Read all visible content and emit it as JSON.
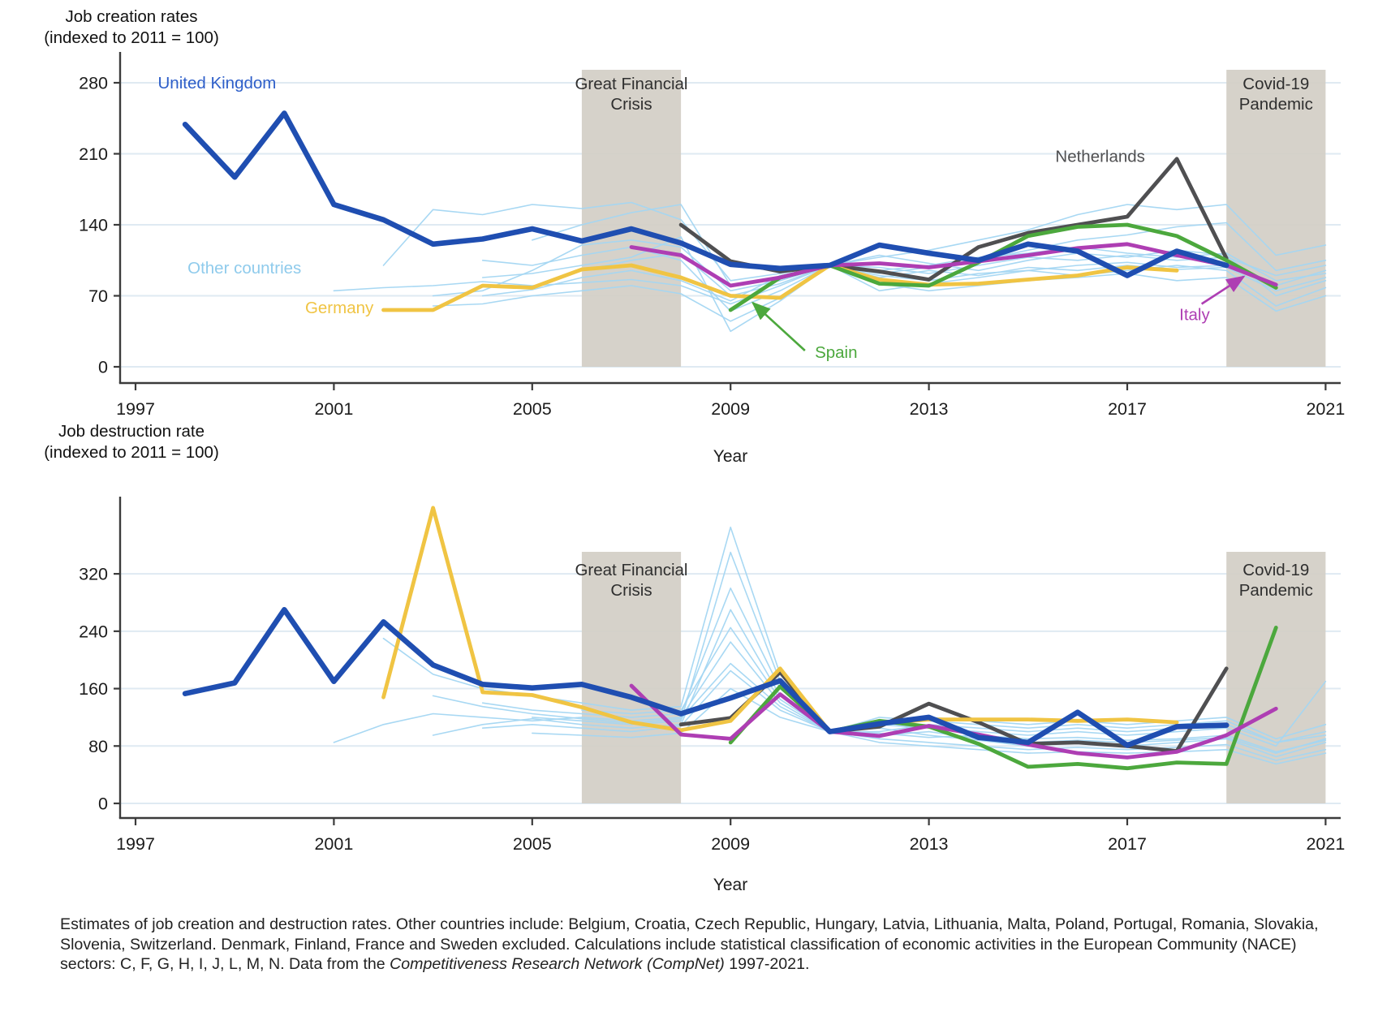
{
  "figure_note": {
    "text_before": "Estimates of job creation and destruction rates. Other countries include: Belgium, Croatia, Czech Republic, Hungary, Latvia, Lithuania, Malta, Poland, Portugal, Romania, Slovakia, Slovenia, Switzerland. Denmark, Finland, France and Sweden excluded. Calculations include statistical classification of economic activities in the European Community (NACE) sectors: C, F, G, H, I, J, L, M, N. Data from the ",
    "italic": "Competitiveness Research Network (CompNet)",
    "text_after": " 1997-2021."
  },
  "colors": {
    "uk": "#1F4EB1",
    "uk_label": "#2D5EC9",
    "germany": "#F0C443",
    "netherlands": "#4F4F51",
    "italy": "#AE3EB3",
    "spain": "#4CA83D",
    "other": "#A3D6F2",
    "other_label": "#8FCBEC",
    "band": "#D2CEC6",
    "grid": "#DFEAF2",
    "axis": "#3B3B3B",
    "text": "#1C1C1C",
    "band_text": "#2F2F2F"
  },
  "chart_data": [
    {
      "type": "line",
      "title_line1": "Job creation rates",
      "title_line2": "(indexed to 2011 = 100)",
      "xlabel": "Year",
      "x_ticks": [
        1997,
        2001,
        2005,
        2009,
        2013,
        2017,
        2021
      ],
      "y_ticks": [
        0,
        70,
        140,
        210,
        280
      ],
      "xlim": [
        1997,
        2021.3
      ],
      "ylim": [
        0,
        293
      ],
      "grid": true,
      "bands": [
        {
          "from": 2006,
          "to": 2008,
          "label": [
            "Great Financial",
            "Crisis"
          ]
        },
        {
          "from": 2019,
          "to": 2021,
          "label": [
            "Covid-19",
            "Pandemic"
          ]
        }
      ],
      "series": [
        {
          "key": "other",
          "name": "Other countries",
          "cls": "other",
          "start": 2001,
          "values": [
            75,
            78,
            80,
            84,
            80,
            83,
            86,
            80,
            62,
            80,
            100,
            90,
            85,
            92,
            95,
            100,
            103,
            98,
            100,
            80,
            95
          ]
        },
        {
          "key": "other",
          "name": "Other countries",
          "cls": "other",
          "start": 2002,
          "values": [
            100,
            155,
            150,
            160,
            156,
            162,
            145,
            85,
            92,
            100,
            95,
            100,
            108,
            112,
            118,
            112,
            108,
            112,
            85,
            92
          ]
        },
        {
          "key": "other",
          "name": "Other countries",
          "cls": "other",
          "start": 2003,
          "values": [
            70,
            75,
            95,
            120,
            125,
            118,
            75,
            85,
            100,
            108,
            115,
            125,
            135,
            150,
            160,
            155,
            160,
            110,
            120
          ]
        },
        {
          "key": "other",
          "name": "Other countries",
          "cls": "other",
          "start": 2003,
          "values": [
            60,
            62,
            70,
            75,
            80,
            72,
            45,
            68,
            100,
            82,
            75,
            80,
            85,
            88,
            92,
            85,
            88,
            55,
            70
          ]
        },
        {
          "key": "other",
          "name": "Other countries",
          "cls": "other",
          "start": 2004,
          "values": [
            105,
            100,
            110,
            118,
            105,
            55,
            75,
            100,
            110,
            102,
            95,
            105,
            112,
            108,
            115,
            110,
            70,
            85
          ]
        },
        {
          "key": "other",
          "name": "Other countries",
          "cls": "other",
          "start": 2004,
          "values": [
            88,
            92,
            100,
            108,
            128,
            35,
            65,
            100,
            75,
            82,
            88,
            95,
            90,
            95,
            100,
            95,
            60,
            78
          ]
        },
        {
          "key": "other",
          "name": "Other countries",
          "cls": "other",
          "start": 2004,
          "values": [
            70,
            76,
            88,
            95,
            85,
            65,
            90,
            100,
            98,
            92,
            100,
            108,
            105,
            110,
            105,
            108,
            90,
            100
          ]
        },
        {
          "key": "other",
          "name": "Other countries",
          "cls": "other",
          "start": 2005,
          "values": [
            125,
            140,
            152,
            160,
            80,
            88,
            100,
            92,
            98,
            105,
            115,
            125,
            130,
            138,
            142,
            95,
            105
          ]
        },
        {
          "key": "other",
          "name": "Other countries",
          "cls": "other",
          "start": 2006,
          "values": [
            95,
            105,
            112,
            70,
            82,
            100,
            88,
            95,
            90,
            98,
            95,
            100,
            96,
            98,
            75,
            88
          ]
        },
        {
          "key": "netherlands",
          "name": "Netherlands",
          "cls": "main",
          "start": 2008,
          "values": [
            140,
            104,
            94,
            100,
            94,
            86,
            118,
            132,
            140,
            148,
            205,
            107
          ]
        },
        {
          "key": "germany",
          "name": "Germany",
          "cls": "main",
          "start": 2002,
          "values": [
            56,
            56,
            80,
            78,
            96,
            100,
            88,
            70,
            68,
            100,
            86,
            81,
            82,
            86,
            90,
            98,
            95
          ]
        },
        {
          "key": "spain",
          "name": "Spain",
          "cls": "main",
          "start": 2009,
          "values": [
            56,
            88,
            100,
            82,
            80,
            103,
            129,
            138,
            140,
            129,
            105,
            78
          ]
        },
        {
          "key": "italy",
          "name": "Italy",
          "cls": "main",
          "start": 2007,
          "values": [
            118,
            110,
            80,
            88,
            100,
            102,
            98,
            104,
            110,
            117,
            121,
            110,
            100,
            81
          ]
        },
        {
          "key": "uk",
          "name": "United Kingdom",
          "cls": "uk",
          "start": 1998,
          "values": [
            239,
            187,
            250,
            160,
            145,
            121,
            126,
            136,
            124,
            136,
            122,
            101,
            97,
            100,
            120,
            112,
            105,
            121,
            114,
            90,
            114,
            100
          ]
        }
      ],
      "labels": [
        {
          "key": "uk_label",
          "text": "United Kingdom",
          "year": 1997.45,
          "value": 274.5,
          "anchor": "start"
        },
        {
          "key": "other_label",
          "text": "Other countries",
          "year": 1998.05,
          "value": 92,
          "anchor": "start"
        },
        {
          "key": "germany",
          "text": "Germany",
          "year": 2001.8,
          "value": 53,
          "anchor": "end"
        },
        {
          "key": "netherlands",
          "text": "Netherlands",
          "year": 2015.55,
          "value": 202,
          "anchor": "start"
        },
        {
          "key": "spain",
          "text": "Spain",
          "year": 2010.7,
          "value": 9,
          "anchor": "start",
          "arrow": {
            "from": [
              2010.5,
              16
            ],
            "to": [
              2009.45,
              63
            ]
          }
        },
        {
          "key": "italy",
          "text": "Italy",
          "year": 2018.05,
          "value": 46,
          "anchor": "start",
          "arrow": {
            "from": [
              2018.5,
              62
            ],
            "to": [
              2019.35,
              89
            ]
          }
        }
      ]
    },
    {
      "type": "line",
      "title_line1": "Job destruction rate",
      "title_line2": "(indexed to 2011 = 100)",
      "xlabel": "Year",
      "x_ticks": [
        1997,
        2001,
        2005,
        2009,
        2013,
        2017,
        2021
      ],
      "y_ticks": [
        0,
        80,
        160,
        240,
        320
      ],
      "xlim": [
        1997,
        2021.3
      ],
      "ylim": [
        0,
        416
      ],
      "grid": true,
      "bands": [
        {
          "from": 2006,
          "to": 2008,
          "label": [
            "Great Financial",
            "Crisis"
          ]
        },
        {
          "from": 2019,
          "to": 2021,
          "label": [
            "Covid-19",
            "Pandemic"
          ]
        }
      ],
      "series": [
        {
          "key": "other",
          "name": "Other countries",
          "cls": "other",
          "start": 2001,
          "values": [
            85,
            110,
            125,
            120,
            115,
            120,
            115,
            120,
            225,
            140,
            100,
            95,
            100,
            90,
            85,
            88,
            85,
            88,
            92,
            70,
            90
          ]
        },
        {
          "key": "other",
          "name": "Other countries",
          "cls": "other",
          "start": 2002,
          "values": [
            230,
            180,
            160,
            150,
            140,
            130,
            135,
            385,
            180,
            100,
            110,
            105,
            100,
            95,
            100,
            95,
            100,
            105,
            80,
            170
          ]
        },
        {
          "key": "other",
          "name": "Other countries",
          "cls": "other",
          "start": 2003,
          "values": [
            95,
            110,
            118,
            110,
            105,
            110,
            270,
            150,
            100,
            105,
            95,
            88,
            80,
            85,
            80,
            85,
            90,
            65,
            85
          ]
        },
        {
          "key": "other",
          "name": "Other countries",
          "cls": "other",
          "start": 2004,
          "values": [
            140,
            130,
            125,
            120,
            125,
            300,
            160,
            100,
            90,
            85,
            80,
            75,
            78,
            75,
            78,
            82,
            60,
            75
          ]
        },
        {
          "key": "other",
          "name": "Other countries",
          "cls": "other",
          "start": 2004,
          "values": [
            105,
            110,
            105,
            100,
            108,
            185,
            130,
            100,
            100,
            110,
            105,
            100,
            105,
            100,
            105,
            110,
            85,
            100
          ]
        },
        {
          "key": "other",
          "name": "Other countries",
          "cls": "other",
          "start": 2005,
          "values": [
            98,
            95,
            92,
            98,
            160,
            120,
            100,
            85,
            80,
            75,
            70,
            72,
            70,
            72,
            75,
            55,
            70
          ]
        },
        {
          "key": "other",
          "name": "Other countries",
          "cls": "other",
          "start": 2005,
          "values": [
            120,
            115,
            110,
            115,
            350,
            170,
            100,
            115,
            120,
            115,
            110,
            115,
            110,
            115,
            120,
            90,
            110
          ]
        },
        {
          "key": "other",
          "name": "Other countries",
          "cls": "other",
          "start": 2006,
          "values": [
            130,
            125,
            130,
            245,
            145,
            100,
            120,
            115,
            110,
            105,
            110,
            105,
            110,
            115,
            85,
            95
          ]
        },
        {
          "key": "other",
          "name": "Other countries",
          "cls": "other",
          "start": 2003,
          "values": [
            150,
            135,
            125,
            118,
            112,
            118,
            195,
            135,
            100,
            98,
            92,
            95,
            90,
            92,
            88,
            90,
            95,
            72,
            88
          ]
        },
        {
          "key": "netherlands",
          "name": "Netherlands",
          "cls": "main",
          "start": 2008,
          "values": [
            110,
            119,
            183,
            100,
            107,
            139,
            113,
            83,
            85,
            80,
            73,
            188
          ]
        },
        {
          "key": "germany",
          "name": "Germany",
          "cls": "main",
          "start": 2002,
          "values": [
            148,
            412,
            155,
            151,
            134,
            113,
            102,
            115,
            188,
            100,
            111,
            117,
            117,
            117,
            115,
            117,
            113
          ]
        },
        {
          "key": "spain",
          "name": "Spain",
          "cls": "main",
          "start": 2009,
          "values": [
            85,
            163,
            100,
            115,
            107,
            83,
            51,
            55,
            49,
            57,
            55,
            245
          ]
        },
        {
          "key": "italy",
          "name": "Italy",
          "cls": "main",
          "start": 2007,
          "values": [
            164,
            96,
            90,
            152,
            100,
            94,
            108,
            96,
            82,
            70,
            64,
            72,
            95,
            132
          ]
        },
        {
          "key": "uk",
          "name": "United Kingdom",
          "cls": "uk",
          "start": 1998,
          "values": [
            153,
            168,
            270,
            170,
            253,
            193,
            166,
            161,
            166,
            148,
            125,
            147,
            171,
            100,
            111,
            120,
            92,
            85,
            127,
            81,
            107,
            109
          ]
        }
      ],
      "labels": []
    }
  ]
}
